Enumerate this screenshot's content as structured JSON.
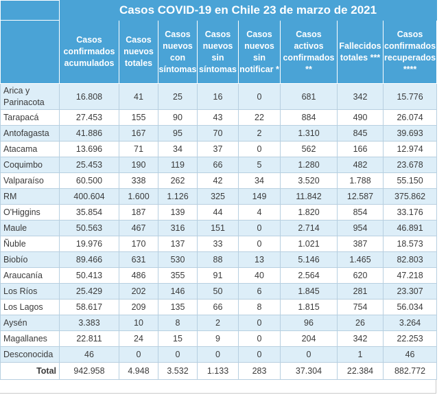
{
  "title": "Casos COVID-19 en Chile 23 de marzo de 2021",
  "headers": [
    "Casos confirmados acumulados",
    "Casos nuevos totales",
    "Casos nuevos con síntomas",
    "Casos nuevos sin síntomas",
    "Casos nuevos sin notificar *",
    "Casos activos confirmados **",
    "Fallecidos totales ***",
    "Casos confirmados recuperados ****"
  ],
  "rows": [
    {
      "region": "Arica y Parinacota",
      "values": [
        "16.808",
        "41",
        "25",
        "16",
        "0",
        "681",
        "342",
        "15.776"
      ]
    },
    {
      "region": "Tarapacá",
      "values": [
        "27.453",
        "155",
        "90",
        "43",
        "22",
        "884",
        "490",
        "26.074"
      ]
    },
    {
      "region": "Antofagasta",
      "values": [
        "41.886",
        "167",
        "95",
        "70",
        "2",
        "1.310",
        "845",
        "39.693"
      ]
    },
    {
      "region": "Atacama",
      "values": [
        "13.696",
        "71",
        "34",
        "37",
        "0",
        "562",
        "166",
        "12.974"
      ]
    },
    {
      "region": "Coquimbo",
      "values": [
        "25.453",
        "190",
        "119",
        "66",
        "5",
        "1.280",
        "482",
        "23.678"
      ]
    },
    {
      "region": "Valparaíso",
      "values": [
        "60.500",
        "338",
        "262",
        "42",
        "34",
        "3.520",
        "1.788",
        "55.150"
      ]
    },
    {
      "region": "RM",
      "values": [
        "400.604",
        "1.600",
        "1.126",
        "325",
        "149",
        "11.842",
        "12.587",
        "375.862"
      ]
    },
    {
      "region": "O'Higgins",
      "values": [
        "35.854",
        "187",
        "139",
        "44",
        "4",
        "1.820",
        "854",
        "33.176"
      ]
    },
    {
      "region": "Maule",
      "values": [
        "50.563",
        "467",
        "316",
        "151",
        "0",
        "2.714",
        "954",
        "46.891"
      ]
    },
    {
      "region": "Ñuble",
      "values": [
        "19.976",
        "170",
        "137",
        "33",
        "0",
        "1.021",
        "387",
        "18.573"
      ]
    },
    {
      "region": "Biobío",
      "values": [
        "89.466",
        "631",
        "530",
        "88",
        "13",
        "5.146",
        "1.465",
        "82.803"
      ]
    },
    {
      "region": "Araucanía",
      "values": [
        "50.413",
        "486",
        "355",
        "91",
        "40",
        "2.564",
        "620",
        "47.218"
      ]
    },
    {
      "region": "Los Ríos",
      "values": [
        "25.429",
        "202",
        "146",
        "50",
        "6",
        "1.845",
        "281",
        "23.307"
      ]
    },
    {
      "region": "Los Lagos",
      "values": [
        "58.617",
        "209",
        "135",
        "66",
        "8",
        "1.815",
        "754",
        "56.034"
      ]
    },
    {
      "region": "Aysén",
      "values": [
        "3.383",
        "10",
        "8",
        "2",
        "0",
        "96",
        "26",
        "3.264"
      ]
    },
    {
      "region": "Magallanes",
      "values": [
        "22.811",
        "24",
        "15",
        "9",
        "0",
        "204",
        "342",
        "22.253"
      ]
    },
    {
      "region": "Desconocida",
      "values": [
        "46",
        "0",
        "0",
        "0",
        "0",
        "0",
        "1",
        "46"
      ]
    }
  ],
  "total": {
    "label": "Total",
    "values": [
      "942.958",
      "4.948",
      "3.532",
      "1.133",
      "283",
      "37.304",
      "22.384",
      "882.772"
    ]
  }
}
